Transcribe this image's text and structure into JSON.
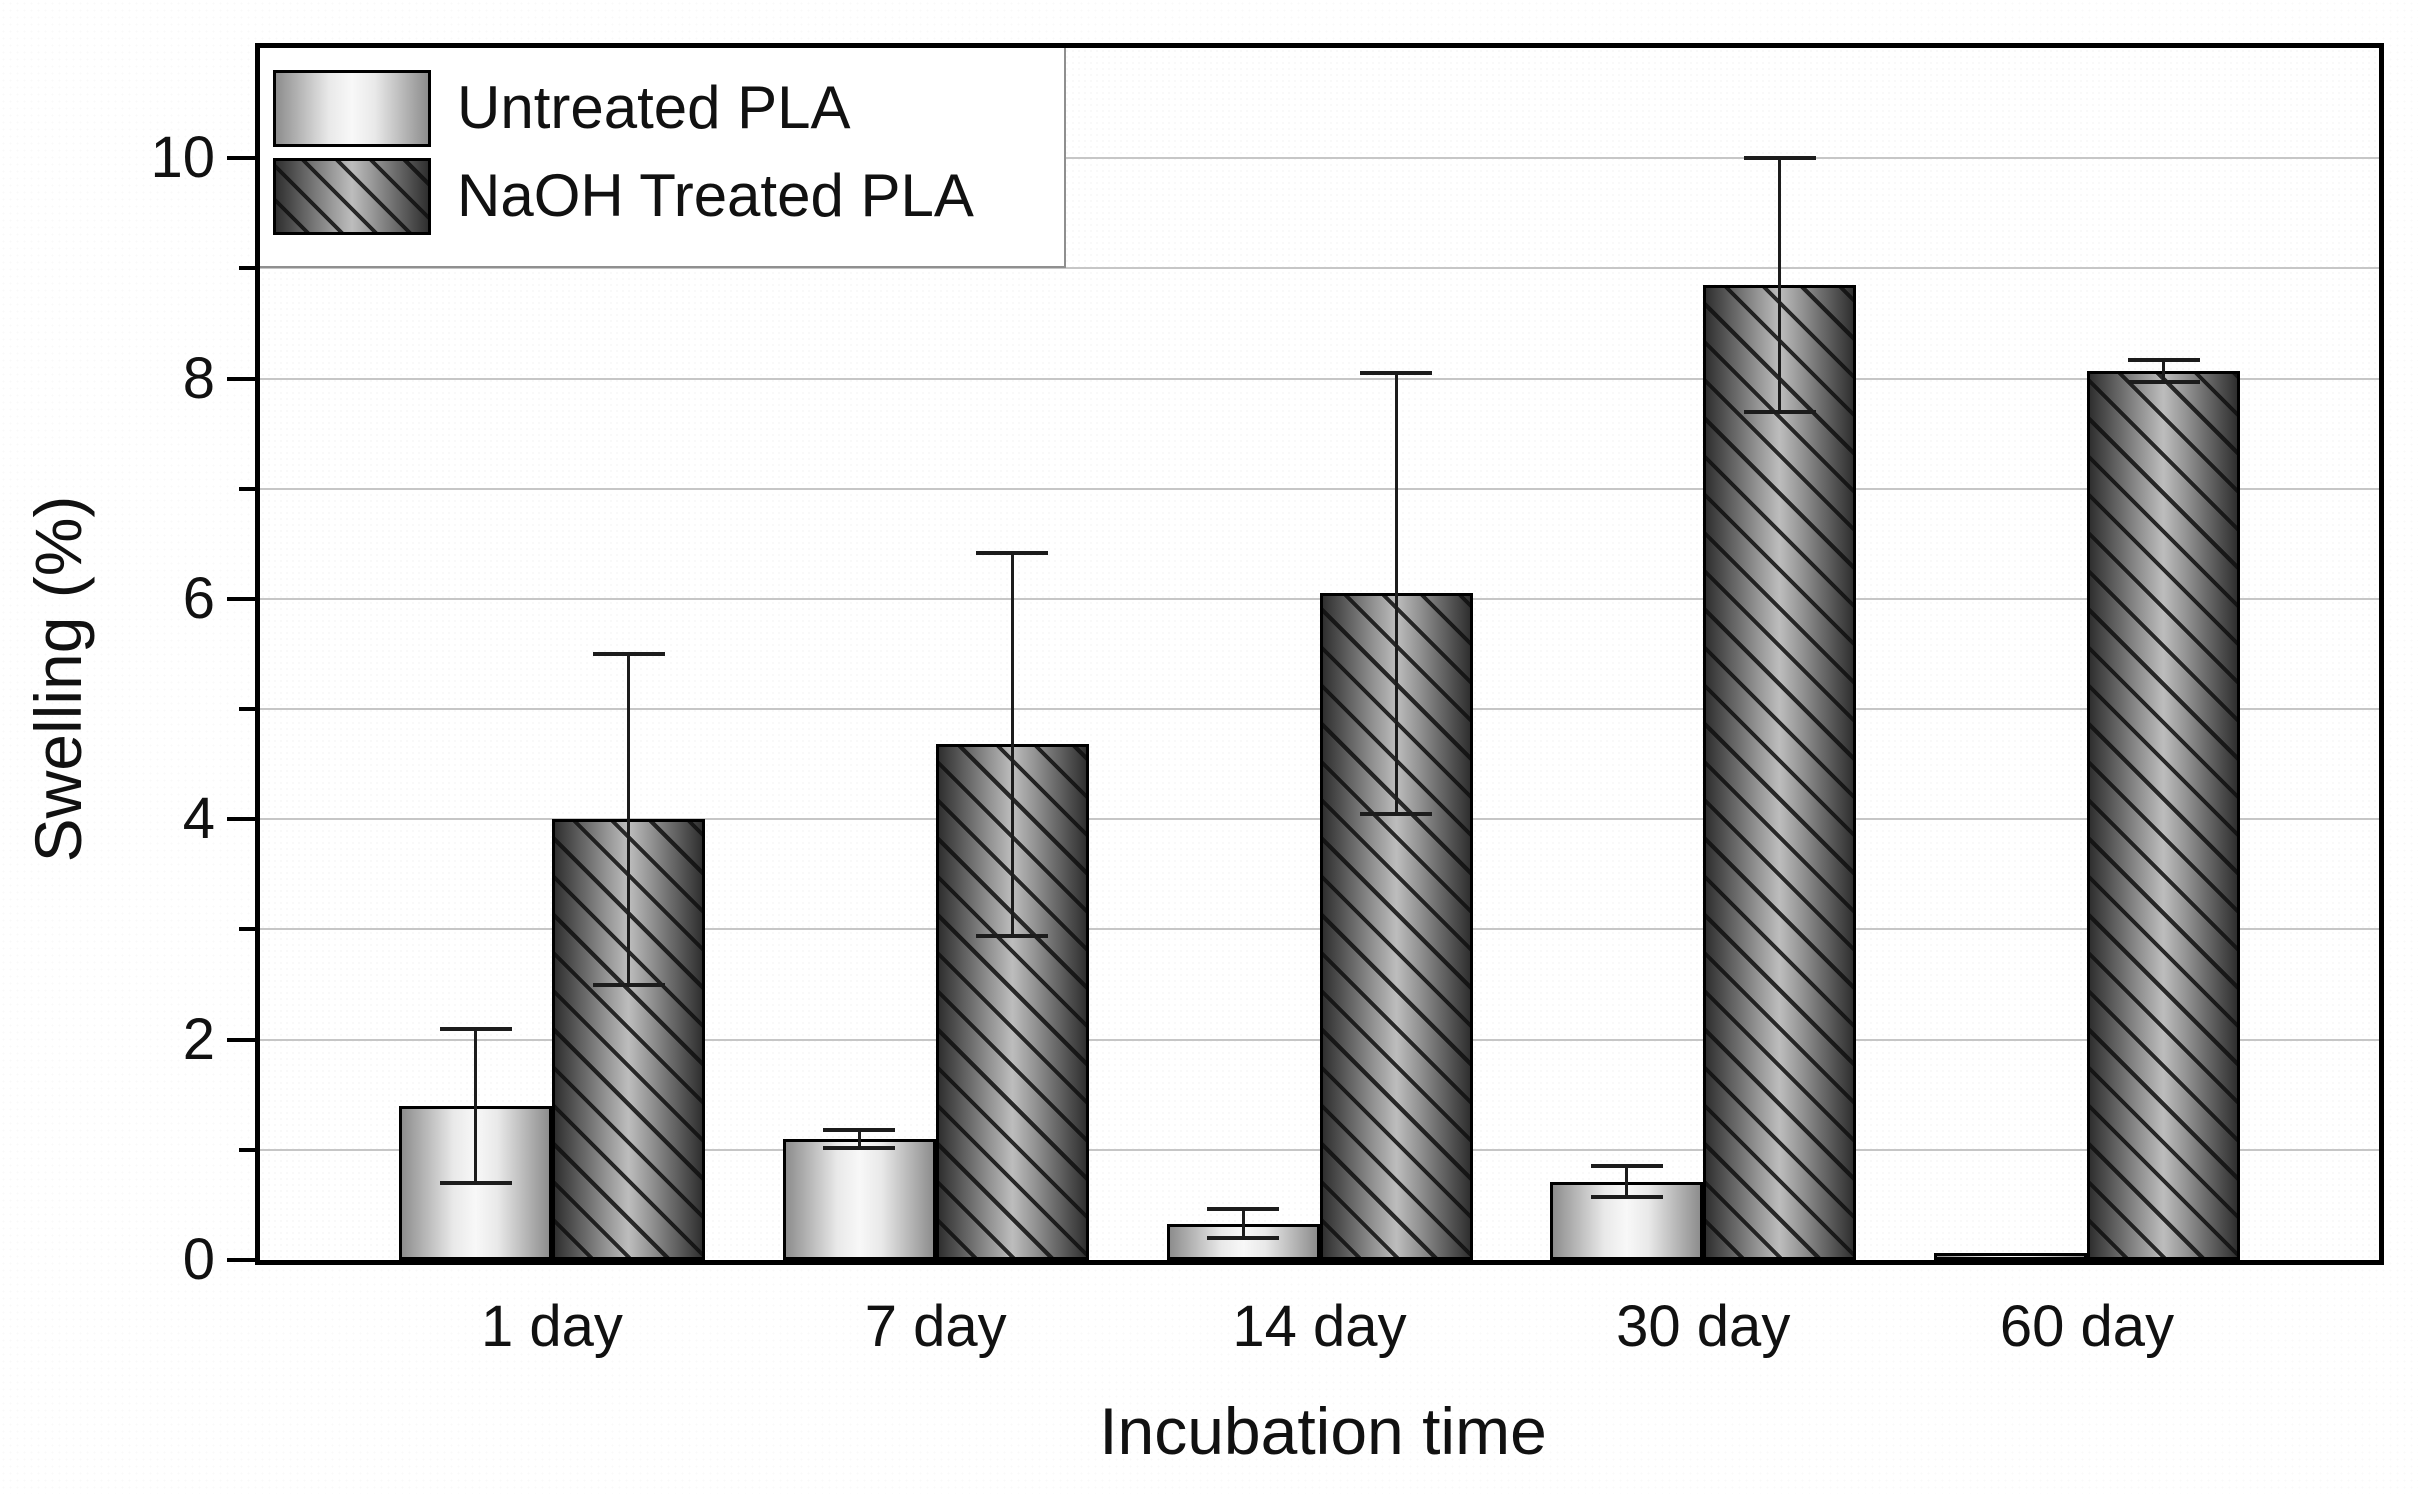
{
  "figure": {
    "background_color": "#ffffff",
    "frame_color": "#000000",
    "grid_color": "#c6c6c6",
    "errorbar_color": "#1c1c1c"
  },
  "axes": {
    "ylabel": "Swelling (%)",
    "xlabel": "Incubation time",
    "ytick_labels": [
      "0",
      "2",
      "4",
      "6",
      "8",
      "10"
    ]
  },
  "legend": {
    "items": [
      {
        "label": "Untreated PLA",
        "pattern": "plain"
      },
      {
        "label": "NaOH Treated PLA",
        "pattern": "hatched"
      }
    ]
  },
  "chart_data": {
    "type": "bar",
    "title": "",
    "xlabel": "Incubation time",
    "ylabel": "Swelling (%)",
    "categories": [
      "1 day",
      "7 day",
      "14 day",
      "30 day",
      "60 day"
    ],
    "series": [
      {
        "name": "Untreated PLA",
        "pattern": "plain",
        "values": [
          1.4,
          1.1,
          0.33,
          0.71,
          0.06
        ],
        "errors": [
          0.7,
          0.08,
          0.13,
          0.14,
          0
        ]
      },
      {
        "name": "NaOH Treated PLA",
        "pattern": "hatched",
        "values": [
          4.0,
          4.68,
          6.05,
          8.85,
          8.07
        ],
        "errors": [
          1.5,
          1.74,
          2.0,
          1.15,
          0.1
        ]
      }
    ],
    "ylim": [
      0,
      11
    ],
    "ytick_major": [
      0,
      2,
      4,
      6,
      8,
      10
    ],
    "ytick_minor": [
      1,
      3,
      5,
      7,
      9
    ],
    "grid": true,
    "grid_step": 1,
    "legend_position": "top-left"
  }
}
